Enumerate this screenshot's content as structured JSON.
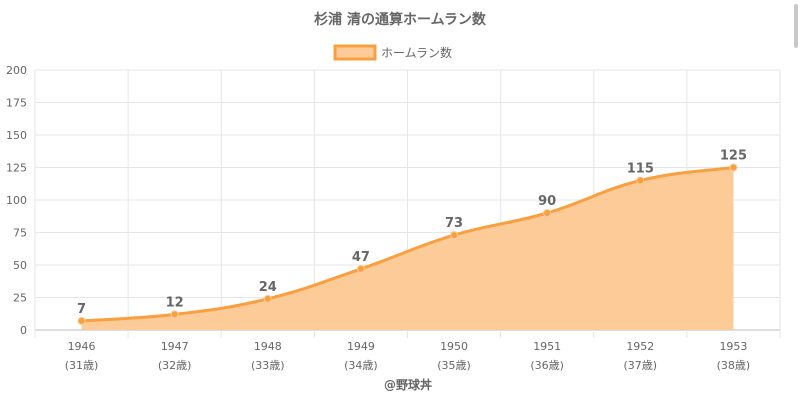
{
  "chart_data": {
    "type": "area",
    "title": "杉浦 清の通算ホームラン数",
    "categories": [
      "1946",
      "1947",
      "1948",
      "1949",
      "1950",
      "1951",
      "1952",
      "1953"
    ],
    "category_sublabels": [
      "(31歳)",
      "(32歳)",
      "(33歳)",
      "(34歳)",
      "(35歳)",
      "(36歳)",
      "(37歳)",
      "(38歳)"
    ],
    "series": [
      {
        "name": "ホームラン数",
        "values": [
          7,
          12,
          24,
          47,
          73,
          90,
          115,
          125
        ]
      }
    ],
    "ylim": [
      0,
      200
    ],
    "yticks": [
      0,
      25,
      50,
      75,
      100,
      125,
      150,
      175,
      200
    ],
    "grid": true,
    "legend_position": "top-center",
    "data_labels": true,
    "colors": {
      "line": "#f99f3f",
      "fill": "#fdcb98",
      "grid": "#e6e6e6",
      "axis": "#bdbdbd"
    }
  },
  "credit": "@野球丼"
}
